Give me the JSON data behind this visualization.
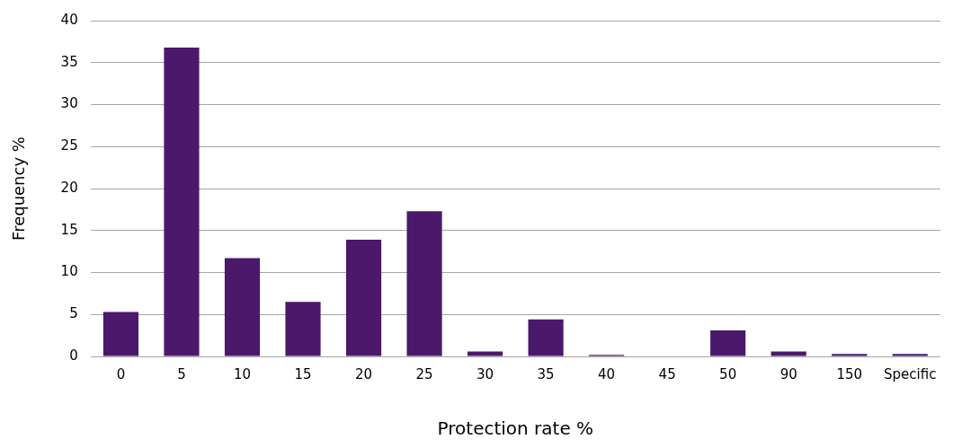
{
  "chart_data": {
    "type": "bar",
    "xlabel": "Protection rate %",
    "ylabel": "Frequency %",
    "categories": [
      "0",
      "5",
      "10",
      "15",
      "20",
      "25",
      "30",
      "35",
      "40",
      "45",
      "50",
      "90",
      "150",
      "Specific"
    ],
    "values": [
      5.3,
      36.8,
      11.7,
      6.5,
      13.9,
      17.3,
      0.6,
      4.4,
      0.2,
      0,
      3.1,
      0.6,
      0.3,
      0.3
    ],
    "color": "#4b186b",
    "ylim": [
      0,
      40
    ],
    "yticks": [
      0,
      5,
      10,
      15,
      20,
      25,
      30,
      35,
      40
    ],
    "grid": "y",
    "legend": false
  }
}
